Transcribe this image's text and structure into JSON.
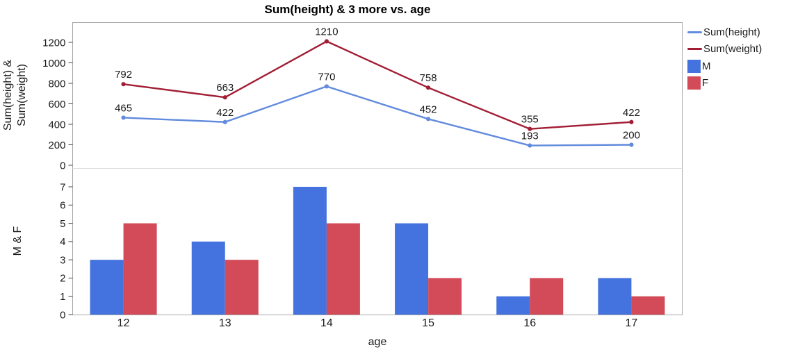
{
  "colors": {
    "height_line": "#628BDD",
    "weight_line": "#A21E35",
    "male_bar": "#4472DE",
    "female_bar": "#D34B58",
    "frame": "#A6A6A6",
    "panel_divider": "#DDDDDD",
    "tick": "#444444",
    "text": "#1A1A1A"
  },
  "legend": {
    "items": [
      {
        "label": "Sum(height)",
        "swatch": "line",
        "color": "#628BDD"
      },
      {
        "label": "Sum(weight)",
        "swatch": "line",
        "color": "#A21E35"
      },
      {
        "label": "M",
        "swatch": "square",
        "color": "#4472DE"
      },
      {
        "label": "F",
        "swatch": "square",
        "color": "#D34B58"
      }
    ]
  },
  "chart_data": [
    {
      "type": "line",
      "panel": "top",
      "title": "Sum(height) & 3 more vs. age",
      "x": [
        12,
        13,
        14,
        15,
        16,
        17
      ],
      "series": [
        {
          "name": "Sum(height)",
          "color": "#628BDD",
          "values": [
            465,
            422,
            770,
            452,
            193,
            200
          ]
        },
        {
          "name": "Sum(weight)",
          "color": "#A21E35",
          "values": [
            792,
            663,
            1210,
            758,
            355,
            422
          ]
        }
      ],
      "data_labels": true,
      "ylabel_lines": [
        "Sum(height) &",
        "Sum(weight)"
      ],
      "yticks": [
        0,
        200,
        400,
        600,
        800,
        1000,
        1200
      ],
      "ylim": [
        0,
        1400
      ],
      "grid": false,
      "legend_position": "right"
    },
    {
      "type": "bar",
      "panel": "bottom",
      "categories": [
        "12",
        "13",
        "14",
        "15",
        "16",
        "17"
      ],
      "series": [
        {
          "name": "M",
          "color": "#4472DE",
          "values": [
            3,
            4,
            7,
            5,
            1,
            2
          ]
        },
        {
          "name": "F",
          "color": "#D34B58",
          "values": [
            5,
            3,
            5,
            2,
            2,
            1
          ]
        }
      ],
      "ylabel": "M & F",
      "xlabel": "age",
      "yticks": [
        0,
        1,
        2,
        3,
        4,
        5,
        6,
        7
      ],
      "ylim": [
        0,
        8
      ],
      "grid": false
    }
  ]
}
